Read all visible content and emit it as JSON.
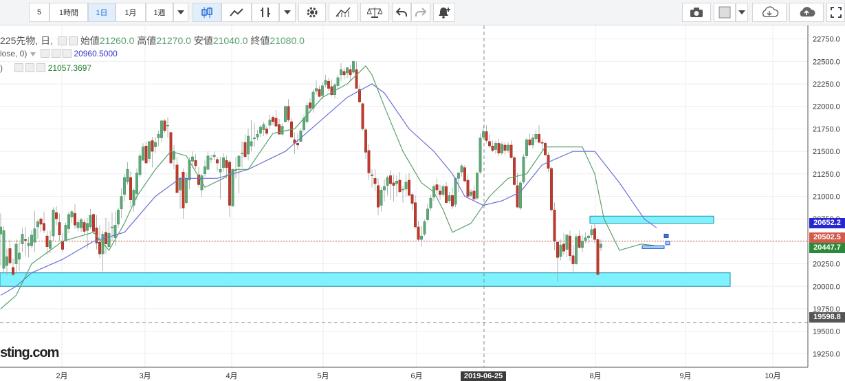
{
  "toolbar": {
    "interval_5": "5",
    "interval_1h": "1時間",
    "interval_1d": "1日",
    "interval_1m": "1月",
    "interval_1w": "1週",
    "icons": [
      "dropdown-icon",
      "candlestick-icon",
      "line-chart-icon",
      "bar-chart-icon",
      "dropdown-icon",
      "settings-icon",
      "indicators-icon",
      "compare-icon",
      "undo-icon",
      "redo-icon",
      "alert-icon",
      "camera-icon",
      "color-box-icon",
      "dropdown-icon",
      "cloud-download-icon",
      "cloud-upload-icon",
      "fullscreen-icon"
    ]
  },
  "legend": {
    "symbol": "225先物, 日,",
    "open_label": "始値",
    "open": "21260.0",
    "high_label": "高値",
    "high": "21270.0",
    "low_label": "安値",
    "low": "21040.0",
    "close_label": "終値",
    "close": "21080.0",
    "ma1_name": "lose, 0)",
    "ma1_value": "20960.5000",
    "ma2_name": ")",
    "ma2_value": "21057.3697"
  },
  "watermark": "sting.com",
  "price_tags": {
    "blue": "20652.2",
    "red": "20502.5",
    "green": "20447.7",
    "dark": "19598.8"
  },
  "crosshair_date": "2019-06-25",
  "chart_data": {
    "type": "candlestick",
    "ylim": [
      19100,
      22900
    ],
    "y_ticks": [
      19250,
      19500,
      19750,
      20000,
      20250,
      20500,
      20750,
      21000,
      21250,
      21500,
      21750,
      22000,
      22250,
      22500,
      22750
    ],
    "x_ticks": [
      "2月",
      "3月",
      "4月",
      "5月",
      "6月",
      "8月",
      "9月",
      "10月"
    ],
    "colors": {
      "up": "#5ea878",
      "down": "#c0392b",
      "ma_fast": "#5aa06b",
      "ma_slow": "#6b6fd8",
      "zone": "#80f2ff"
    },
    "candles": [
      [
        20580,
        20810,
        20230,
        20660
      ],
      [
        20200,
        20670,
        20140,
        20620
      ],
      [
        20230,
        20420,
        20130,
        20330
      ],
      [
        20420,
        20520,
        20240,
        20260
      ],
      [
        20210,
        20310,
        20110,
        20130
      ],
      [
        20250,
        20520,
        20140,
        20470
      ],
      [
        20300,
        20490,
        20170,
        20370
      ],
      [
        20470,
        20650,
        20380,
        20580
      ],
      [
        20520,
        20660,
        20330,
        20510
      ],
      [
        20450,
        20550,
        20320,
        20480
      ],
      [
        20450,
        20620,
        20420,
        20570
      ],
      [
        20490,
        20840,
        20380,
        20640
      ],
      [
        20660,
        20740,
        20530,
        20720
      ],
      [
        20750,
        20770,
        20600,
        20690
      ],
      [
        20700,
        20830,
        20590,
        20620
      ],
      [
        20560,
        20620,
        20350,
        20440
      ],
      [
        20420,
        20620,
        20370,
        20510
      ],
      [
        20560,
        20880,
        20500,
        20850
      ],
      [
        20820,
        20890,
        20680,
        20750
      ],
      [
        20710,
        20810,
        20500,
        20570
      ],
      [
        20500,
        20590,
        20380,
        20410
      ],
      [
        20510,
        20710,
        20500,
        20680
      ],
      [
        20640,
        20830,
        20590,
        20800
      ],
      [
        20770,
        20850,
        20700,
        20830
      ],
      [
        20810,
        20910,
        20640,
        20680
      ],
      [
        20650,
        20740,
        20610,
        20710
      ],
      [
        20650,
        20760,
        20600,
        20740
      ],
      [
        20710,
        20740,
        20570,
        20610
      ],
      [
        20620,
        20760,
        20420,
        20700
      ],
      [
        20660,
        20860,
        20640,
        20790
      ],
      [
        20800,
        20810,
        20580,
        20610
      ],
      [
        20650,
        20790,
        20410,
        20480
      ],
      [
        20490,
        20680,
        20310,
        20360
      ],
      [
        20360,
        20620,
        20170,
        20580
      ],
      [
        20600,
        20760,
        20360,
        20470
      ],
      [
        20440,
        20720,
        20430,
        20590
      ],
      [
        20650,
        20820,
        20500,
        20660
      ],
      [
        20540,
        20830,
        20450,
        20680
      ],
      [
        20690,
        20870,
        20650,
        20850
      ],
      [
        20860,
        21090,
        20760,
        21000
      ],
      [
        21020,
        21250,
        20940,
        21210
      ],
      [
        21160,
        21380,
        21130,
        21300
      ],
      [
        21210,
        21280,
        20880,
        20960
      ],
      [
        20900,
        21090,
        20830,
        21070
      ],
      [
        21030,
        21310,
        20960,
        21260
      ],
      [
        21240,
        21480,
        21210,
        21450
      ],
      [
        21400,
        21590,
        21400,
        21550
      ],
      [
        21560,
        21610,
        21370,
        21370
      ],
      [
        21420,
        21610,
        21380,
        21610
      ],
      [
        21620,
        21660,
        21320,
        21500
      ],
      [
        21550,
        21660,
        21480,
        21600
      ],
      [
        21650,
        21730,
        21560,
        21690
      ],
      [
        21650,
        21850,
        21600,
        21840
      ],
      [
        21840,
        21860,
        21700,
        21730
      ],
      [
        21790,
        21880,
        21650,
        21790
      ],
      [
        21710,
        21720,
        21370,
        21370
      ],
      [
        21410,
        21570,
        21300,
        21500
      ],
      [
        21350,
        21440,
        21040,
        21040
      ],
      [
        21070,
        21220,
        20860,
        21200
      ],
      [
        21270,
        21310,
        20750,
        20870
      ],
      [
        20930,
        21260,
        20910,
        21200
      ],
      [
        21180,
        21430,
        21080,
        21400
      ],
      [
        21390,
        21500,
        21320,
        21440
      ],
      [
        21400,
        21470,
        21300,
        21340
      ],
      [
        21240,
        21330,
        21100,
        21130
      ],
      [
        21070,
        21250,
        20990,
        21230
      ],
      [
        21250,
        21400,
        21220,
        21330
      ],
      [
        21300,
        21500,
        21290,
        21450
      ],
      [
        21420,
        21460,
        21370,
        21420
      ],
      [
        21440,
        21500,
        21400,
        21460
      ],
      [
        21410,
        21440,
        21280,
        21370
      ],
      [
        21270,
        21440,
        20970,
        21300
      ],
      [
        21320,
        21480,
        21270,
        21430
      ],
      [
        21400,
        21450,
        21200,
        21320
      ],
      [
        21380,
        21400,
        20770,
        20900
      ],
      [
        20890,
        21310,
        20890,
        21300
      ],
      [
        21290,
        21440,
        21200,
        21290
      ],
      [
        21330,
        21450,
        21030,
        21450
      ],
      [
        21480,
        21610,
        21320,
        21480
      ],
      [
        21600,
        21690,
        21430,
        21440
      ],
      [
        21470,
        21750,
        21400,
        21670
      ],
      [
        21560,
        21850,
        21500,
        21610
      ],
      [
        21640,
        21820,
        21550,
        21650
      ],
      [
        21660,
        21740,
        21620,
        21690
      ],
      [
        21700,
        21790,
        21660,
        21770
      ],
      [
        21740,
        21830,
        21670,
        21800
      ],
      [
        21750,
        21780,
        21680,
        21700
      ],
      [
        21790,
        21910,
        21750,
        21850
      ],
      [
        21880,
        21900,
        21790,
        21830
      ],
      [
        21870,
        21960,
        21770,
        21780
      ],
      [
        21800,
        21860,
        21690,
        21690
      ],
      [
        21690,
        21810,
        21680,
        21780
      ],
      [
        21830,
        22010,
        21820,
        22000
      ],
      [
        22000,
        22080,
        21830,
        21850
      ],
      [
        21830,
        21870,
        21650,
        21660
      ],
      [
        21630,
        21710,
        21470,
        21590
      ],
      [
        21590,
        21700,
        21520,
        21570
      ],
      [
        21610,
        21760,
        21600,
        21730
      ],
      [
        21740,
        21910,
        21720,
        21870
      ],
      [
        21830,
        22050,
        21810,
        22010
      ],
      [
        22040,
        22090,
        21930,
        21980
      ],
      [
        21980,
        22190,
        21930,
        22160
      ],
      [
        22170,
        22290,
        22130,
        22200
      ],
      [
        22190,
        22230,
        22100,
        22110
      ],
      [
        22120,
        22270,
        22080,
        22230
      ],
      [
        22240,
        22350,
        22210,
        22290
      ],
      [
        22280,
        22320,
        22170,
        22200
      ],
      [
        22220,
        22300,
        22110,
        22130
      ],
      [
        22130,
        22260,
        22090,
        22240
      ],
      [
        22230,
        22350,
        22190,
        22320
      ],
      [
        22350,
        22480,
        22280,
        22410
      ],
      [
        22390,
        22430,
        22300,
        22350
      ],
      [
        22370,
        22440,
        22310,
        22430
      ],
      [
        22410,
        22460,
        22290,
        22350
      ],
      [
        22380,
        22510,
        22360,
        22500
      ],
      [
        22410,
        22500,
        22200,
        22200
      ],
      [
        22190,
        22240,
        22040,
        22050
      ],
      [
        22030,
        22040,
        21730,
        21750
      ],
      [
        21740,
        21760,
        21420,
        21490
      ],
      [
        21510,
        21580,
        21180,
        21260
      ],
      [
        21240,
        21300,
        21100,
        21230
      ],
      [
        21200,
        21300,
        21060,
        21140
      ],
      [
        21120,
        21200,
        20790,
        20880
      ],
      [
        20900,
        21100,
        20830,
        21070
      ],
      [
        21070,
        21190,
        20940,
        21110
      ],
      [
        21120,
        21230,
        21010,
        21210
      ],
      [
        21230,
        21290,
        20960,
        21140
      ],
      [
        21150,
        21240,
        20940,
        21120
      ],
      [
        21140,
        21230,
        21000,
        21170
      ],
      [
        21180,
        21270,
        21040,
        21050
      ],
      [
        21070,
        21110,
        20930,
        21080
      ],
      [
        21080,
        21240,
        21000,
        21160
      ],
      [
        21180,
        21260,
        21010,
        21010
      ],
      [
        21020,
        21040,
        20850,
        20920
      ],
      [
        20930,
        21010,
        20640,
        20660
      ],
      [
        20660,
        20730,
        20500,
        20520
      ],
      [
        20520,
        20670,
        20440,
        20560
      ],
      [
        20580,
        20740,
        20560,
        20720
      ],
      [
        20740,
        20920,
        20720,
        20860
      ],
      [
        20870,
        21020,
        20840,
        20980
      ],
      [
        20990,
        21130,
        20950,
        21110
      ],
      [
        21130,
        21200,
        21020,
        21070
      ],
      [
        21060,
        21130,
        20960,
        21020
      ],
      [
        21020,
        21130,
        21000,
        21110
      ],
      [
        21110,
        21160,
        20920,
        20930
      ],
      [
        20950,
        21050,
        20920,
        21010
      ],
      [
        21010,
        21100,
        20860,
        20890
      ],
      [
        20910,
        21210,
        20880,
        21200
      ],
      [
        21200,
        21270,
        21050,
        21260
      ],
      [
        21270,
        21360,
        21220,
        21340
      ],
      [
        21320,
        21350,
        21160,
        21170
      ],
      [
        21180,
        21240,
        20980,
        21000
      ],
      [
        21010,
        21080,
        20990,
        21050
      ],
      [
        21060,
        21120,
        20960,
        20970
      ],
      [
        20980,
        21270,
        20960,
        21260
      ],
      [
        21270,
        21700,
        21250,
        21650
      ],
      [
        21660,
        21780,
        21640,
        21720
      ],
      [
        21720,
        21790,
        21590,
        21620
      ],
      [
        21610,
        21690,
        21540,
        21560
      ],
      [
        21560,
        21620,
        21490,
        21510
      ],
      [
        21520,
        21620,
        21470,
        21590
      ],
      [
        21590,
        21640,
        21450,
        21480
      ],
      [
        21480,
        21610,
        21460,
        21580
      ],
      [
        21570,
        21600,
        21460,
        21510
      ],
      [
        21510,
        21600,
        21480,
        21570
      ],
      [
        21570,
        21620,
        21420,
        21430
      ],
      [
        21430,
        21450,
        21120,
        21130
      ],
      [
        21120,
        21260,
        20870,
        20880
      ],
      [
        20870,
        21170,
        20850,
        21150
      ],
      [
        21160,
        21470,
        21140,
        21440
      ],
      [
        21450,
        21650,
        21420,
        21630
      ],
      [
        21630,
        21700,
        21560,
        21570
      ],
      [
        21570,
        21690,
        21530,
        21650
      ],
      [
        21640,
        21740,
        21600,
        21690
      ],
      [
        21690,
        21790,
        21590,
        21600
      ],
      [
        21600,
        21640,
        21510,
        21590
      ],
      [
        21590,
        21610,
        21450,
        21460
      ],
      [
        21460,
        21490,
        21270,
        21310
      ],
      [
        21310,
        21330,
        20830,
        20850
      ],
      [
        20850,
        20930,
        20400,
        20500
      ],
      [
        20490,
        20500,
        20050,
        20320
      ],
      [
        20330,
        20520,
        20290,
        20460
      ],
      [
        20470,
        20590,
        20350,
        20390
      ],
      [
        20410,
        20580,
        20320,
        20570
      ],
      [
        20560,
        20620,
        20280,
        20340
      ],
      [
        20340,
        20460,
        20150,
        20250
      ],
      [
        20250,
        20580,
        20240,
        20550
      ],
      [
        20560,
        20620,
        20420,
        20430
      ],
      [
        20430,
        20570,
        20380,
        20500
      ],
      [
        20510,
        20600,
        20480,
        20540
      ],
      [
        20540,
        20580,
        20480,
        20560
      ],
      [
        20570,
        20680,
        20540,
        20630
      ],
      [
        20640,
        20700,
        20480,
        20520
      ],
      [
        20520,
        20540,
        20120,
        20130
      ],
      [
        20430,
        20520,
        20390,
        20470
      ]
    ],
    "sma_fast": [
      [
        0,
        19750
      ],
      [
        5,
        19900
      ],
      [
        10,
        20250
      ],
      [
        20,
        20500
      ],
      [
        30,
        20600
      ],
      [
        35,
        20400
      ],
      [
        40,
        20700
      ],
      [
        44,
        21000
      ],
      [
        50,
        21300
      ],
      [
        55,
        21500
      ],
      [
        60,
        21450
      ],
      [
        66,
        21100
      ],
      [
        72,
        21200
      ],
      [
        76,
        21300
      ],
      [
        80,
        21300
      ],
      [
        88,
        21700
      ],
      [
        95,
        21750
      ],
      [
        104,
        22100
      ],
      [
        112,
        22250
      ],
      [
        118,
        22450
      ],
      [
        120,
        22350
      ],
      [
        124,
        22000
      ],
      [
        130,
        21500
      ],
      [
        136,
        21150
      ],
      [
        140,
        21050
      ],
      [
        143,
        20850
      ],
      [
        146,
        20600
      ],
      [
        152,
        20700
      ],
      [
        158,
        21000
      ],
      [
        164,
        21200
      ],
      [
        170,
        21250
      ],
      [
        176,
        21550
      ],
      [
        182,
        21550
      ],
      [
        188,
        21550
      ],
      [
        192,
        21250
      ],
      [
        195,
        20750
      ],
      [
        200,
        20400
      ],
      [
        207,
        20470
      ],
      [
        212,
        20450
      ]
    ],
    "sma_slow": [
      [
        0,
        19900
      ],
      [
        5,
        20000
      ],
      [
        10,
        20150
      ],
      [
        20,
        20300
      ],
      [
        30,
        20500
      ],
      [
        40,
        20600
      ],
      [
        50,
        21000
      ],
      [
        58,
        21200
      ],
      [
        70,
        21200
      ],
      [
        80,
        21300
      ],
      [
        92,
        21500
      ],
      [
        102,
        21800
      ],
      [
        112,
        22100
      ],
      [
        120,
        22250
      ],
      [
        124,
        22150
      ],
      [
        132,
        21750
      ],
      [
        140,
        21500
      ],
      [
        146,
        21250
      ],
      [
        150,
        21000
      ],
      [
        156,
        20900
      ],
      [
        162,
        20950
      ],
      [
        168,
        21050
      ],
      [
        175,
        21350
      ],
      [
        185,
        21500
      ],
      [
        192,
        21500
      ],
      [
        200,
        21150
      ],
      [
        208,
        20750
      ],
      [
        212,
        20650
      ]
    ],
    "horizontal_lines": [
      {
        "value": 20502.5,
        "style": "dotted"
      },
      {
        "value": 19598.8,
        "style": "dashed"
      }
    ],
    "zones": [
      {
        "y": [
          20000,
          20150
        ]
      },
      {
        "y": [
          20700,
          20780
        ]
      },
      {
        "y": [
          20420,
          20450
        ]
      }
    ]
  }
}
